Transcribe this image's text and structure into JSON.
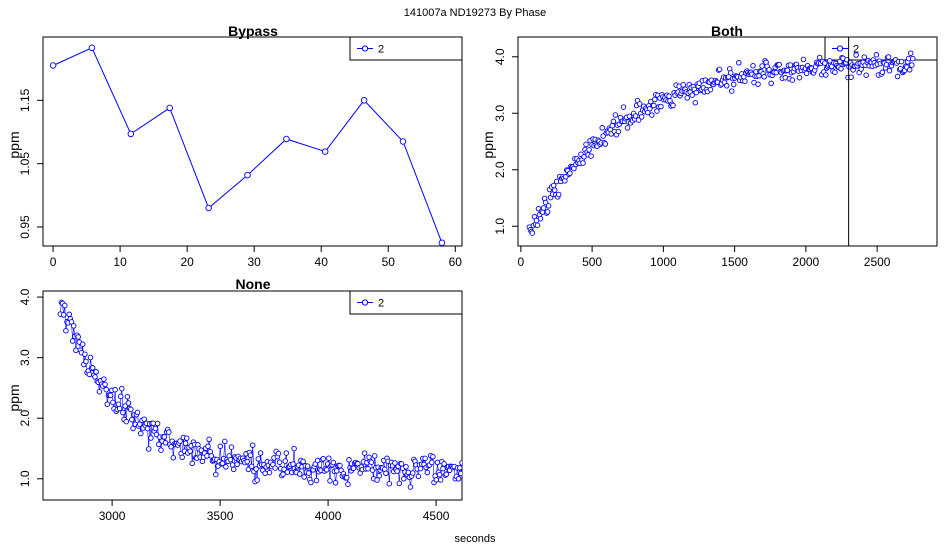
{
  "page": {
    "title": "141007a    ND19273   By Phase",
    "xlabel": "seconds"
  },
  "colors": {
    "series": "#0000ff",
    "frame": "#000000"
  },
  "chart_data": [
    {
      "id": "bypass",
      "type": "line",
      "title": "Bypass",
      "ylabel": "ppm",
      "legend": "2",
      "xlim": [
        -1.5,
        61
      ],
      "ylim": [
        0.92,
        1.25
      ],
      "xticks": [
        0,
        10,
        20,
        30,
        40,
        50,
        60
      ],
      "yticks": [
        0.95,
        1.05,
        1.15
      ],
      "marker_line": false,
      "series": [
        {
          "name": "2",
          "x": [
            0,
            5.8,
            11.6,
            17.4,
            23.2,
            29.0,
            34.8,
            40.6,
            46.4,
            52.2,
            58.0
          ],
          "y": [
            1.205,
            1.233,
            1.097,
            1.138,
            0.98,
            1.032,
            1.089,
            1.069,
            1.15,
            1.085,
            0.925
          ]
        }
      ]
    },
    {
      "id": "both",
      "type": "scatter",
      "title": "Both",
      "ylabel": "ppm",
      "legend": "2",
      "xlim": [
        -20,
        2920
      ],
      "ylim": [
        0.65,
        4.35
      ],
      "xticks": [
        0,
        500,
        1000,
        1500,
        2000,
        2500
      ],
      "yticks": [
        1.0,
        2.0,
        3.0,
        4.0
      ],
      "yticklabels": [
        "1.0",
        "2.0",
        "3.0",
        "4.0"
      ],
      "vline": 2300,
      "series": [
        {
          "name": "2",
          "model": {
            "kind": "rise",
            "x_start": 60,
            "x_end": 2750,
            "n": 380,
            "y0": 0.9,
            "y_inf": 3.95,
            "tau": 650,
            "noise": 0.09
          }
        }
      ]
    },
    {
      "id": "none",
      "type": "scatter",
      "title": "None",
      "ylabel": "ppm",
      "legend": "2",
      "xlim": [
        2680,
        4620
      ],
      "ylim": [
        0.65,
        4.1
      ],
      "xticks": [
        3000,
        3500,
        4000,
        4500
      ],
      "yticks": [
        1.0,
        2.0,
        3.0,
        4.0
      ],
      "yticklabels": [
        "1.0",
        "2.0",
        "3.0",
        "4.0"
      ],
      "connected": true,
      "series": [
        {
          "name": "2",
          "model": {
            "kind": "decay",
            "x_start": 2760,
            "x_end": 4620,
            "n": 360,
            "y_inf": 1.15,
            "a": 2.75,
            "tau": 280,
            "noise": 0.11
          }
        }
      ]
    }
  ]
}
